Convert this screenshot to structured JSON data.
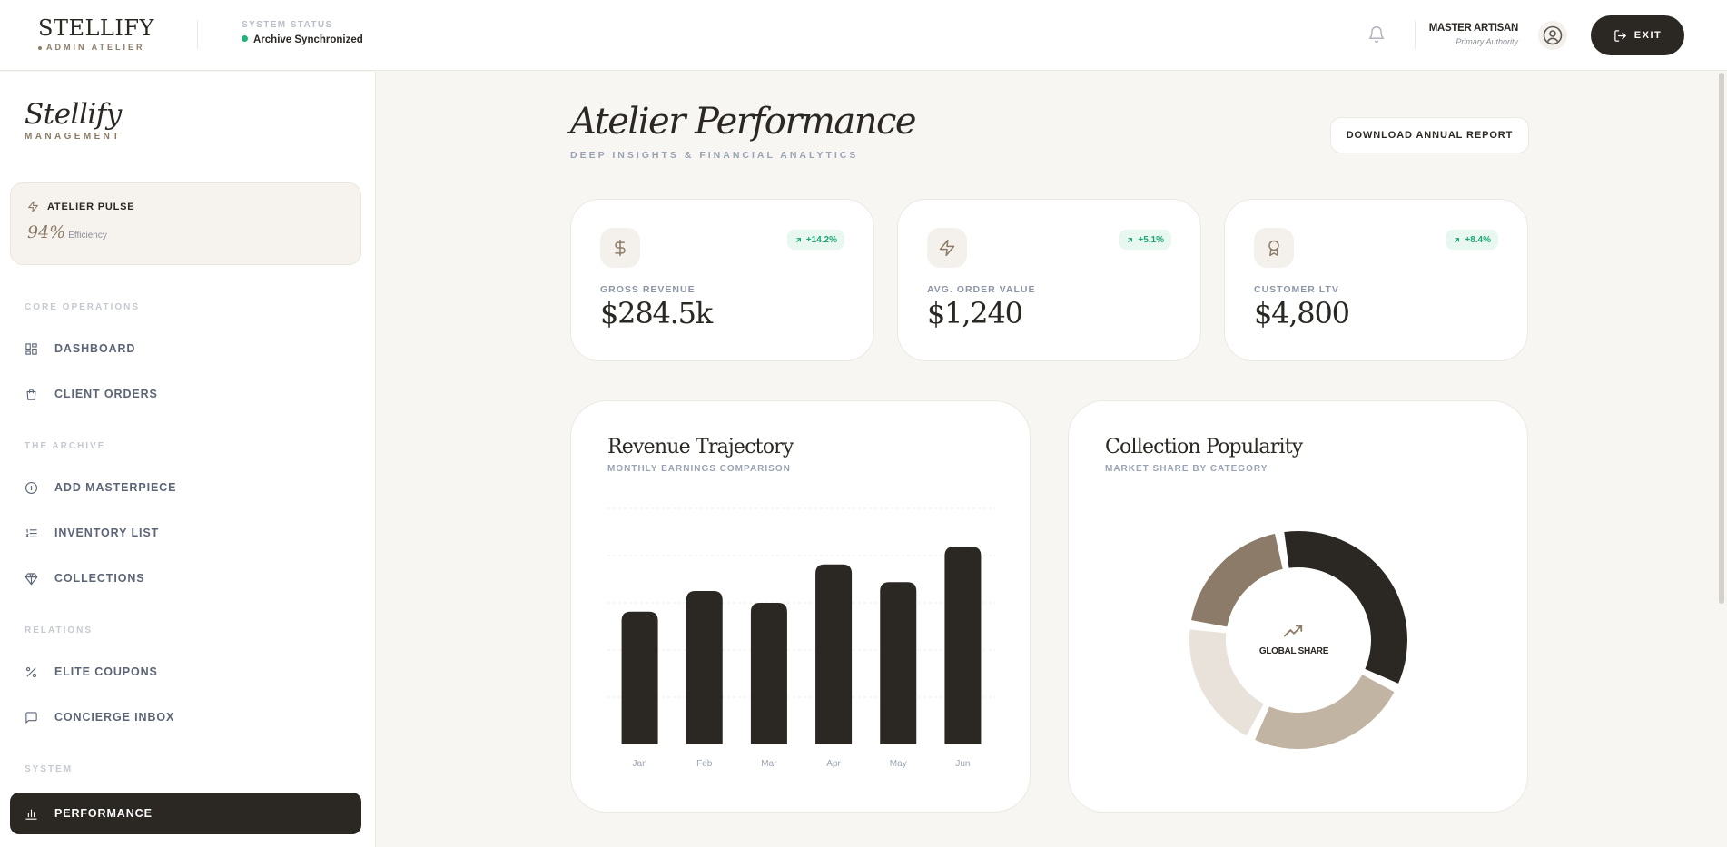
{
  "header": {
    "brand_name": "STELLIFY",
    "brand_sub": "ADMIN ATELIER",
    "status_label": "SYSTEM STATUS",
    "status_value": "Archive Synchronized",
    "user_name": "MASTER ARTISAN",
    "user_role": "Primary Authority",
    "exit_label": "EXIT",
    "icons": [
      "bell-icon",
      "user-circle-icon",
      "logout-icon"
    ]
  },
  "sidebar": {
    "brand_name": "Stellify",
    "brand_sub": "MANAGEMENT",
    "pulse": {
      "title": "ATELIER PULSE",
      "value": "94%",
      "caption": "Efficiency"
    },
    "sections": [
      {
        "label": "CORE OPERATIONS",
        "items": [
          {
            "label": "DASHBOARD",
            "icon": "grid-icon"
          },
          {
            "label": "CLIENT ORDERS",
            "icon": "bag-icon"
          }
        ]
      },
      {
        "label": "THE ARCHIVE",
        "items": [
          {
            "label": "ADD MASTERPIECE",
            "icon": "plus-circle-icon"
          },
          {
            "label": "INVENTORY LIST",
            "icon": "list-icon"
          },
          {
            "label": "COLLECTIONS",
            "icon": "gem-icon"
          }
        ]
      },
      {
        "label": "RELATIONS",
        "items": [
          {
            "label": "ELITE COUPONS",
            "icon": "percent-icon"
          },
          {
            "label": "CONCIERGE INBOX",
            "icon": "message-icon"
          }
        ]
      },
      {
        "label": "SYSTEM",
        "items": [
          {
            "label": "PERFORMANCE",
            "icon": "bar-chart-icon",
            "active": true
          }
        ]
      }
    ]
  },
  "main": {
    "title": "Atelier Performance",
    "subtitle": "DEEP INSIGHTS & FINANCIAL ANALYTICS",
    "download_label": "DOWNLOAD ANNUAL REPORT",
    "kpis": [
      {
        "label": "GROSS REVENUE",
        "value": "$284.5k",
        "change": "+14.2%",
        "icon": "dollar-icon"
      },
      {
        "label": "AVG. ORDER VALUE",
        "value": "$1,240",
        "change": "+5.1%",
        "icon": "bolt-icon"
      },
      {
        "label": "CUSTOMER LTV",
        "value": "$4,800",
        "change": "+8.4%",
        "icon": "award-icon"
      }
    ],
    "revenue_panel": {
      "title": "Revenue Trajectory",
      "subtitle": "MONTHLY EARNINGS COMPARISON"
    },
    "popularity_panel": {
      "title": "Collection Popularity",
      "subtitle": "MARKET SHARE BY CATEGORY",
      "center_label": "GLOBAL SHARE"
    },
    "colors": {
      "accent": "#2b2723",
      "brand_tan": "#8c7b68",
      "positive": "#1fa672"
    }
  },
  "chart_data": [
    {
      "type": "bar",
      "categories": [
        "Jan",
        "Feb",
        "Mar",
        "Apr",
        "May",
        "Jun"
      ],
      "values": [
        45,
        52,
        48,
        61,
        55,
        67
      ],
      "ylim": [
        0,
        80
      ],
      "grid": true,
      "color": "#2b2723"
    },
    {
      "type": "pie",
      "donut": true,
      "values": [
        35,
        25,
        20,
        20
      ],
      "colors": [
        "#2b2723",
        "#c2b4a3",
        "#e8e2da",
        "#8c7b68"
      ]
    }
  ]
}
